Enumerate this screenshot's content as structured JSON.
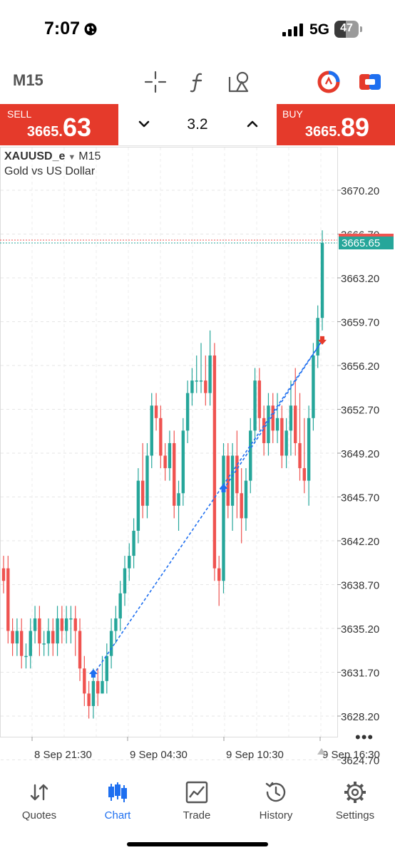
{
  "status_bar": {
    "time": "7:07",
    "network": "5G",
    "battery": "47"
  },
  "toolbar": {
    "timeframe": "M15"
  },
  "trade": {
    "sell_label": "SELL",
    "sell_price_small": "3665.",
    "sell_price_big": "63",
    "buy_label": "BUY",
    "buy_price_small": "3665.",
    "buy_price_big": "89",
    "volume": "3.2"
  },
  "chart_header": {
    "symbol": "XAUUSD_e",
    "timeframe": "M15",
    "description": "Gold vs US Dollar"
  },
  "chart_data": {
    "type": "candlestick",
    "y_ticks": [
      "3670.20",
      "3666.70",
      "3663.20",
      "3659.70",
      "3656.20",
      "3652.70",
      "3649.20",
      "3645.70",
      "3642.20",
      "3638.70",
      "3635.20",
      "3631.70",
      "3628.20",
      "3624.70"
    ],
    "current_price": "3665.65",
    "x_labels": [
      "8 Sep 21:30",
      "9 Sep 04:30",
      "9 Sep 10:30",
      "9 Sep 16:30"
    ],
    "ylim": [
      3622,
      3672
    ],
    "up_color": "#26a69a",
    "down_color": "#ef5350",
    "candles": [
      [
        3640,
        3641,
        3638,
        3639
      ],
      [
        3640,
        3641,
        3634,
        3635
      ],
      [
        3635,
        3636,
        3633,
        3634
      ],
      [
        3634,
        3636,
        3633,
        3635
      ],
      [
        3635,
        3636,
        3632,
        3633
      ],
      [
        3633,
        3634,
        3632,
        3633
      ],
      [
        3633,
        3636,
        3632,
        3635
      ],
      [
        3635,
        3637,
        3634,
        3636
      ],
      [
        3636,
        3637,
        3633,
        3634
      ],
      [
        3634,
        3635,
        3633,
        3634
      ],
      [
        3634,
        3636,
        3633,
        3635
      ],
      [
        3635,
        3636,
        3633,
        3634
      ],
      [
        3634,
        3637,
        3633,
        3636
      ],
      [
        3636,
        3637,
        3634,
        3635
      ],
      [
        3635,
        3637,
        3634,
        3636
      ],
      [
        3636,
        3637,
        3634,
        3636
      ],
      [
        3636,
        3637,
        3633,
        3635
      ],
      [
        3635,
        3636,
        3631,
        3632
      ],
      [
        3632,
        3633,
        3629,
        3630
      ],
      [
        3630,
        3631,
        3628,
        3629
      ],
      [
        3629,
        3632,
        3628,
        3631
      ],
      [
        3631,
        3632,
        3629,
        3630
      ],
      [
        3630,
        3633,
        3630,
        3631
      ],
      [
        3631,
        3634,
        3630,
        3633
      ],
      [
        3633,
        3636,
        3632,
        3635
      ],
      [
        3635,
        3637,
        3634,
        3636
      ],
      [
        3636,
        3639,
        3635,
        3638
      ],
      [
        3638,
        3641,
        3637,
        3640
      ],
      [
        3640,
        3642,
        3639,
        3641
      ],
      [
        3641,
        3644,
        3640,
        3643
      ],
      [
        3643,
        3648,
        3642,
        3647
      ],
      [
        3647,
        3650,
        3644,
        3645
      ],
      [
        3645,
        3650,
        3644,
        3649
      ],
      [
        3649,
        3654,
        3648,
        3653
      ],
      [
        3653,
        3654,
        3651,
        3652
      ],
      [
        3652,
        3653,
        3648,
        3649
      ],
      [
        3649,
        3650,
        3647,
        3648
      ],
      [
        3648,
        3651,
        3647,
        3650
      ],
      [
        3650,
        3651,
        3644,
        3645
      ],
      [
        3645,
        3647,
        3643,
        3646
      ],
      [
        3646,
        3652,
        3645,
        3651
      ],
      [
        3651,
        3655,
        3650,
        3654
      ],
      [
        3654,
        3656,
        3653,
        3655
      ],
      [
        3655,
        3657,
        3654,
        3655
      ],
      [
        3655,
        3658,
        3654,
        3655
      ],
      [
        3655,
        3657,
        3653,
        3654
      ],
      [
        3654,
        3659,
        3653,
        3657
      ],
      [
        3657,
        3658,
        3639,
        3640
      ],
      [
        3640,
        3641,
        3637,
        3639
      ],
      [
        3639,
        3650,
        3638,
        3649
      ],
      [
        3649,
        3650,
        3644,
        3645
      ],
      [
        3645,
        3650,
        3643,
        3649
      ],
      [
        3649,
        3651,
        3644,
        3646
      ],
      [
        3646,
        3648,
        3642,
        3644
      ],
      [
        3644,
        3648,
        3643,
        3647
      ],
      [
        3647,
        3652,
        3646,
        3651
      ],
      [
        3651,
        3656,
        3650,
        3655
      ],
      [
        3655,
        3656,
        3651,
        3652
      ],
      [
        3652,
        3653,
        3649,
        3650
      ],
      [
        3650,
        3654,
        3649,
        3653
      ],
      [
        3653,
        3654,
        3650,
        3651
      ],
      [
        3651,
        3654,
        3650,
        3652
      ],
      [
        3652,
        3653,
        3648,
        3649
      ],
      [
        3649,
        3652,
        3648,
        3651
      ],
      [
        3651,
        3655,
        3649,
        3653
      ],
      [
        3653,
        3656,
        3649,
        3650
      ],
      [
        3650,
        3654,
        3647,
        3648
      ],
      [
        3648,
        3652,
        3646,
        3647
      ],
      [
        3647,
        3653,
        3645,
        3652
      ],
      [
        3652,
        3658,
        3651,
        3657
      ],
      [
        3657,
        3661,
        3656,
        3660
      ],
      [
        3660,
        3667,
        3659,
        3666
      ]
    ],
    "trade_markers": [
      {
        "type": "buy",
        "candle": 20,
        "price": 3631.5
      },
      {
        "type": "buy",
        "candle": 49,
        "price": 3646.3
      },
      {
        "type": "sell",
        "candle": 71,
        "price": 3658.2
      }
    ]
  },
  "nav": {
    "quotes": "Quotes",
    "chart": "Chart",
    "trade": "Trade",
    "history": "History",
    "settings": "Settings",
    "active": "chart"
  },
  "colors": {
    "accent": "#1e6ff0",
    "sell_buy_bg": "#e53a2b",
    "price_tag": "#26a69a"
  }
}
